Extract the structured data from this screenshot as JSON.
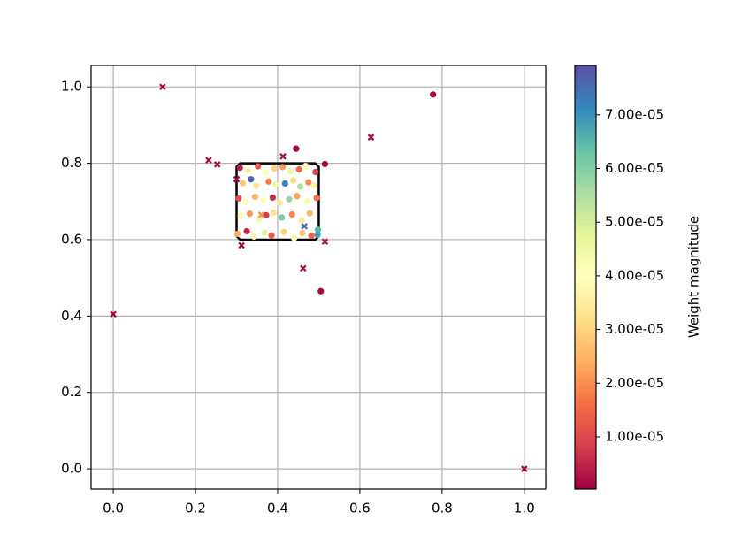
{
  "chart_data": {
    "type": "scatter",
    "xlim": [
      -0.054,
      1.052
    ],
    "ylim": [
      -0.053,
      1.056
    ],
    "xticks": [
      {
        "value": 0,
        "label": "0.0"
      },
      0.2,
      0.4,
      0.6,
      0.8,
      {
        "value": 1,
        "label": "1.0"
      }
    ],
    "yticks": [
      {
        "value": 0,
        "label": "0.0"
      },
      0.2,
      0.4,
      0.6,
      0.8,
      {
        "value": 1,
        "label": "1.0"
      }
    ],
    "grid": true,
    "colormap": "Spectral",
    "clim": [
      2.7e-07,
      7.92e-05
    ],
    "colorbar_label": "Weight magnitude",
    "colorbar_ticks": [
      {
        "value": 1e-05,
        "label": "1.00e-05"
      },
      {
        "value": 2e-05,
        "label": "2.00e-05"
      },
      {
        "value": 3e-05,
        "label": "3.00e-05"
      },
      {
        "value": 4e-05,
        "label": "4.00e-05"
      },
      {
        "value": 5e-05,
        "label": "5.00e-05"
      },
      {
        "value": 6e-05,
        "label": "6.00e-05"
      },
      {
        "value": 7e-05,
        "label": "7.00e-05"
      }
    ],
    "box": {
      "x": [
        0.3,
        0.5
      ],
      "y": [
        0.6,
        0.8
      ]
    },
    "series": [
      {
        "marker": "o",
        "x": [
          0.308,
          0.328,
          0.352,
          0.371,
          0.392,
          0.412,
          0.431,
          0.452,
          0.468,
          0.492,
          0.315,
          0.335,
          0.348,
          0.378,
          0.395,
          0.418,
          0.438,
          0.455,
          0.475,
          0.488,
          0.305,
          0.322,
          0.345,
          0.365,
          0.388,
          0.405,
          0.428,
          0.447,
          0.472,
          0.495,
          0.31,
          0.332,
          0.355,
          0.372,
          0.39,
          0.41,
          0.435,
          0.458,
          0.478,
          0.498,
          0.302,
          0.325,
          0.342,
          0.368,
          0.385,
          0.415,
          0.44,
          0.46,
          0.482,
          0.497,
          0.445,
          0.778,
          0.505,
          0.515
        ],
        "y": [
          0.788,
          0.781,
          0.792,
          0.776,
          0.786,
          0.79,
          0.779,
          0.784,
          0.793,
          0.777,
          0.748,
          0.758,
          0.741,
          0.752,
          0.744,
          0.747,
          0.755,
          0.739,
          0.75,
          0.742,
          0.708,
          0.699,
          0.712,
          0.703,
          0.71,
          0.697,
          0.706,
          0.714,
          0.701,
          0.709,
          0.662,
          0.668,
          0.655,
          0.664,
          0.671,
          0.658,
          0.666,
          0.651,
          0.669,
          0.626,
          0.615,
          0.622,
          0.608,
          0.618,
          0.611,
          0.62,
          0.604,
          0.617,
          0.61,
          0.613,
          0.838,
          0.98,
          0.465,
          0.798
        ],
        "c": [
          4e-06,
          3.5e-05,
          1.2e-05,
          4.1e-05,
          3e-05,
          2.2e-05,
          4.6e-05,
          1.5e-05,
          3.8e-05,
          9e-06,
          2.8e-05,
          7.6e-05,
          3.3e-05,
          1.8e-05,
          4.4e-05,
          7.2e-05,
          3.1e-05,
          5.5e-05,
          2e-05,
          3.6e-05,
          1.1e-05,
          4e-05,
          2.5e-05,
          3.9e-05,
          6e-06,
          3.4e-05,
          5.8e-05,
          2.3e-05,
          4.2e-05,
          1.6e-05,
          3.7e-05,
          2.1e-05,
          4.5e-05,
          8e-06,
          3.2e-05,
          6.1e-05,
          1.9e-05,
          3.5e-05,
          2.6e-05,
          6.5e-05,
          2.4e-05,
          5e-06,
          3.6e-05,
          4.8e-05,
          1.3e-05,
          3e-05,
          4.3e-05,
          2.7e-05,
          1.4e-05,
          6.8e-05,
          1e-06,
          1e-06,
          1e-06,
          1e-06
        ]
      },
      {
        "marker": "x",
        "x": [
          0.12,
          0.232,
          0.253,
          0.0,
          0.627,
          0.413,
          0.462,
          1.0,
          0.312,
          0.515,
          0.465,
          0.36,
          0.3
        ],
        "y": [
          1.0,
          0.808,
          0.797,
          0.405,
          0.868,
          0.818,
          0.525,
          0.0,
          0.585,
          0.595,
          0.635,
          0.665,
          0.758
        ],
        "c": [
          1e-06,
          1e-06,
          1e-06,
          1e-06,
          1e-06,
          1e-06,
          1e-06,
          1e-06,
          1e-06,
          2e-06,
          7.5e-05,
          2e-05,
          1e-06
        ]
      }
    ]
  }
}
